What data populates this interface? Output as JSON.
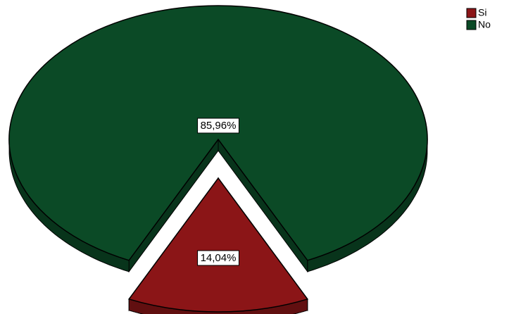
{
  "chart_data": {
    "type": "pie",
    "categories": [
      "Si",
      "No"
    ],
    "values": [
      14.04,
      85.96
    ],
    "value_labels": [
      "14,04%",
      "85,96%"
    ],
    "colors": [
      "#8b1517",
      "#0b4a26"
    ],
    "exploded": [
      true,
      false
    ],
    "legend": "top-right"
  }
}
